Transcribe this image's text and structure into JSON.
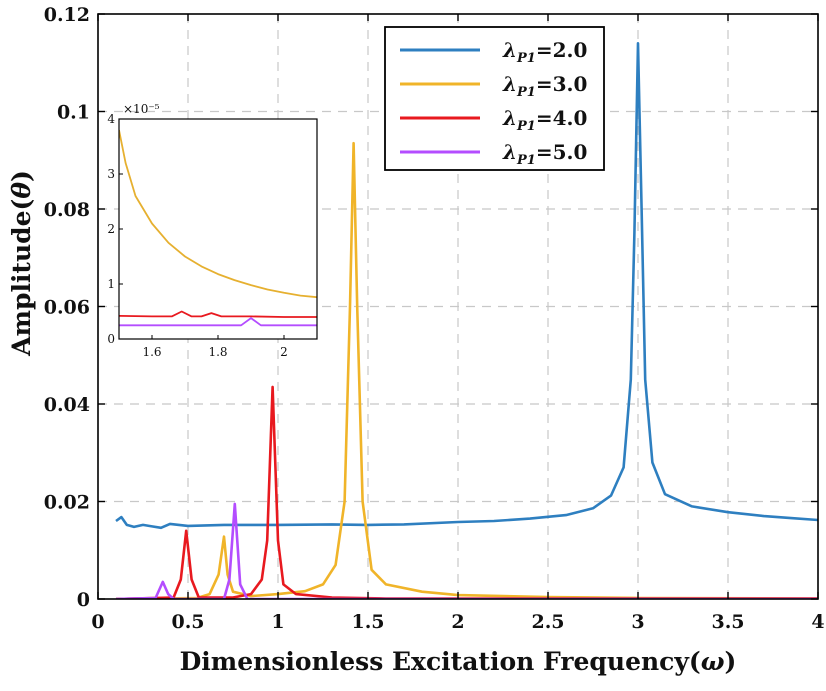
{
  "chart_data": {
    "type": "line",
    "title": "",
    "xlabel": "Dimensionless Excitation Frequency(ω)",
    "ylabel": "Amplitude(θ)",
    "xlim": [
      0,
      4
    ],
    "ylim": [
      0,
      0.12
    ],
    "x_ticks": [
      "0",
      "0.5",
      "1",
      "1.5",
      "2",
      "2.5",
      "3",
      "3.5",
      "4"
    ],
    "y_ticks": [
      "0",
      "0.02",
      "0.04",
      "0.06",
      "0.08",
      "0.1",
      "0.12"
    ],
    "grid": true,
    "legend_position": "top-right",
    "series": [
      {
        "name": "λP1=2.0",
        "legend": {
          "symbol": "λ",
          "sub": "P1",
          "value": "=2.0"
        },
        "color": "#2e7fc0",
        "points": [
          [
            0.1,
            0.016
          ],
          [
            0.13,
            0.0168
          ],
          [
            0.16,
            0.0152
          ],
          [
            0.2,
            0.0148
          ],
          [
            0.25,
            0.0152
          ],
          [
            0.3,
            0.0149
          ],
          [
            0.35,
            0.0146
          ],
          [
            0.4,
            0.0154
          ],
          [
            0.5,
            0.015
          ],
          [
            0.7,
            0.0152
          ],
          [
            1.0,
            0.0152
          ],
          [
            1.3,
            0.0153
          ],
          [
            1.5,
            0.0152
          ],
          [
            1.7,
            0.0153
          ],
          [
            2.0,
            0.0158
          ],
          [
            2.2,
            0.016
          ],
          [
            2.4,
            0.0165
          ],
          [
            2.6,
            0.0172
          ],
          [
            2.75,
            0.0186
          ],
          [
            2.85,
            0.0212
          ],
          [
            2.92,
            0.027
          ],
          [
            2.96,
            0.045
          ],
          [
            2.98,
            0.075
          ],
          [
            3.0,
            0.114
          ],
          [
            3.02,
            0.08
          ],
          [
            3.04,
            0.045
          ],
          [
            3.08,
            0.028
          ],
          [
            3.15,
            0.0215
          ],
          [
            3.3,
            0.019
          ],
          [
            3.5,
            0.0178
          ],
          [
            3.7,
            0.017
          ],
          [
            3.85,
            0.0166
          ],
          [
            4.0,
            0.0162
          ]
        ]
      },
      {
        "name": "λP1=3.0",
        "legend": {
          "symbol": "λ",
          "sub": "P1",
          "value": "=3.0"
        },
        "color": "#f0b429",
        "points": [
          [
            0.1,
            0.0
          ],
          [
            0.55,
            0.0002
          ],
          [
            0.62,
            0.001
          ],
          [
            0.67,
            0.005
          ],
          [
            0.7,
            0.0128
          ],
          [
            0.72,
            0.005
          ],
          [
            0.75,
            0.0015
          ],
          [
            0.85,
            0.0006
          ],
          [
            1.0,
            0.001
          ],
          [
            1.15,
            0.0016
          ],
          [
            1.25,
            0.003
          ],
          [
            1.32,
            0.007
          ],
          [
            1.37,
            0.02
          ],
          [
            1.4,
            0.06
          ],
          [
            1.42,
            0.0935
          ],
          [
            1.44,
            0.06
          ],
          [
            1.47,
            0.02
          ],
          [
            1.52,
            0.006
          ],
          [
            1.6,
            0.003
          ],
          [
            1.8,
            0.0015
          ],
          [
            2.0,
            0.0008
          ],
          [
            2.5,
            0.0004
          ],
          [
            3.0,
            0.0002
          ],
          [
            4.0,
            0.0001
          ]
        ]
      },
      {
        "name": "λP1=4.0",
        "legend": {
          "symbol": "λ",
          "sub": "P1",
          "value": "=4.0"
        },
        "color": "#e8191f",
        "points": [
          [
            0.1,
            0.0
          ],
          [
            0.42,
            0.0003
          ],
          [
            0.46,
            0.004
          ],
          [
            0.49,
            0.014
          ],
          [
            0.52,
            0.004
          ],
          [
            0.56,
            0.0003
          ],
          [
            0.75,
            0.0003
          ],
          [
            0.85,
            0.001
          ],
          [
            0.91,
            0.004
          ],
          [
            0.94,
            0.012
          ],
          [
            0.97,
            0.0435
          ],
          [
            1.0,
            0.012
          ],
          [
            1.03,
            0.003
          ],
          [
            1.1,
            0.001
          ],
          [
            1.3,
            0.0003
          ],
          [
            1.6,
            0.0001
          ],
          [
            4.0,
            0.0001
          ]
        ]
      },
      {
        "name": "λP1=5.0",
        "legend": {
          "symbol": "λ",
          "sub": "P1",
          "value": "=5.0"
        },
        "color": "#b44dff",
        "points": [
          [
            0.1,
            0.0
          ],
          [
            0.32,
            0.0002
          ],
          [
            0.36,
            0.0035
          ],
          [
            0.39,
            0.001
          ],
          [
            0.42,
            0.0
          ],
          [
            0.7,
            0.0
          ],
          [
            0.73,
            0.004
          ],
          [
            0.76,
            0.0195
          ],
          [
            0.79,
            0.003
          ],
          [
            0.83,
            0.0
          ],
          [
            4.0,
            0.0
          ]
        ]
      }
    ],
    "inset": {
      "multiplier_label": "×10⁻⁵",
      "xlim": [
        1.5,
        2.1
      ],
      "ylim": [
        0,
        4
      ],
      "x_ticks": [
        "1.6",
        "1.8",
        "2"
      ],
      "y_ticks": [
        "0",
        "1",
        "2",
        "3",
        "4"
      ],
      "series": [
        {
          "name": "λP1=3.0",
          "color": "#e6b030",
          "points": [
            [
              1.5,
              3.8
            ],
            [
              1.52,
              3.2
            ],
            [
              1.55,
              2.6
            ],
            [
              1.6,
              2.1
            ],
            [
              1.65,
              1.75
            ],
            [
              1.7,
              1.5
            ],
            [
              1.75,
              1.32
            ],
            [
              1.8,
              1.18
            ],
            [
              1.85,
              1.07
            ],
            [
              1.9,
              0.98
            ],
            [
              1.95,
              0.9
            ],
            [
              2.0,
              0.84
            ],
            [
              2.05,
              0.79
            ],
            [
              2.1,
              0.76
            ]
          ]
        },
        {
          "name": "λP1=4.0",
          "color": "#e8191f",
          "points": [
            [
              1.5,
              0.42
            ],
            [
              1.6,
              0.41
            ],
            [
              1.66,
              0.41
            ],
            [
              1.69,
              0.5
            ],
            [
              1.72,
              0.41
            ],
            [
              1.75,
              0.41
            ],
            [
              1.78,
              0.47
            ],
            [
              1.81,
              0.41
            ],
            [
              1.9,
              0.41
            ],
            [
              2.0,
              0.4
            ],
            [
              2.1,
              0.4
            ]
          ]
        },
        {
          "name": "λP1=5.0",
          "color": "#b44dff",
          "points": [
            [
              1.5,
              0.25
            ],
            [
              1.7,
              0.25
            ],
            [
              1.87,
              0.25
            ],
            [
              1.9,
              0.38
            ],
            [
              1.93,
              0.25
            ],
            [
              2.1,
              0.25
            ]
          ]
        }
      ]
    }
  }
}
